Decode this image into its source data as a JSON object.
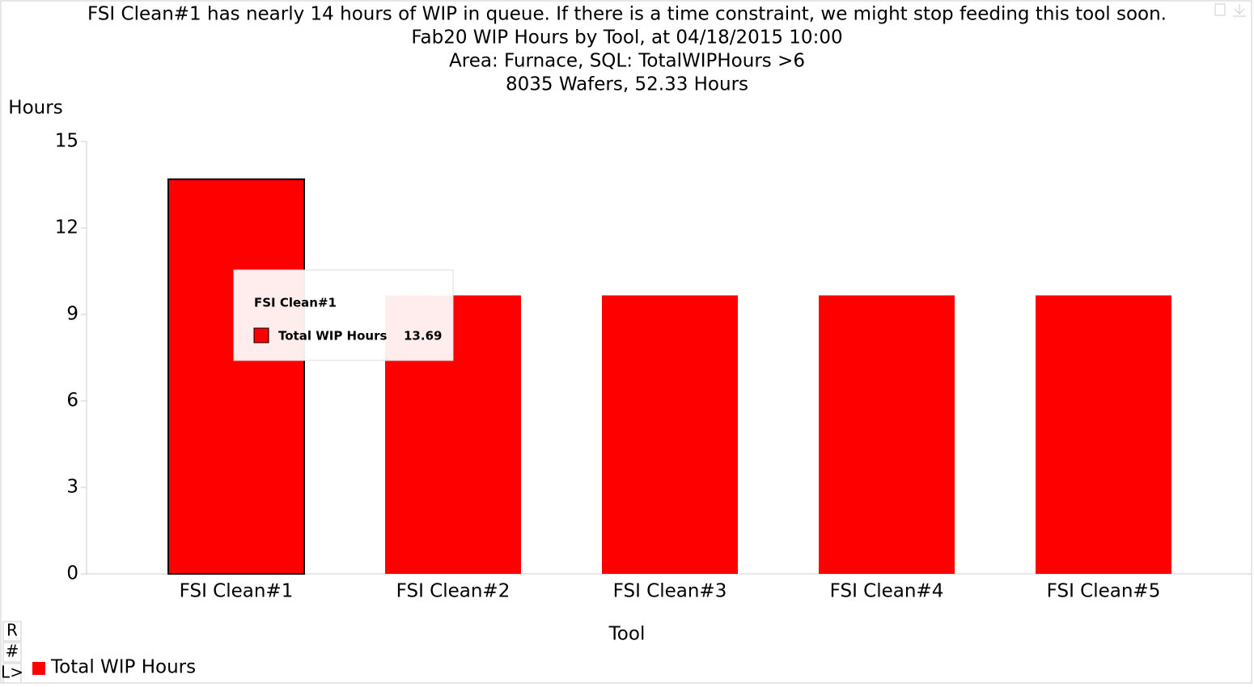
{
  "chart_data": {
    "type": "bar",
    "title_lines": [
      "FSI Clean#1 has nearly 14 hours of WIP in queue. If there is a time constraint, we might stop feeding this tool soon.",
      "Fab20 WIP Hours by Tool, at 04/18/2015 10:00",
      "Area: Furnace, SQL: TotalWIPHours >6",
      "8035 Wafers, 52.33 Hours"
    ],
    "y_label": "Hours",
    "x_label": "Tool",
    "categories": [
      "FSI Clean#1",
      "FSI Clean#2",
      "FSI Clean#3",
      "FSI Clean#4",
      "FSI Clean#5"
    ],
    "series": [
      {
        "name": "Total WIP Hours",
        "color": "#ff0000",
        "values": [
          13.69,
          9.66,
          9.66,
          9.66,
          9.66
        ]
      }
    ],
    "ylim": [
      0,
      15
    ],
    "yticks": [
      0,
      3,
      6,
      9,
      12,
      15
    ],
    "legend": "bottom-left",
    "tooltip": {
      "category": "FSI Clean#1",
      "series": "Total WIP Hours",
      "value": 13.69
    },
    "corner_marks": [
      "R",
      "#",
      "L>"
    ]
  }
}
